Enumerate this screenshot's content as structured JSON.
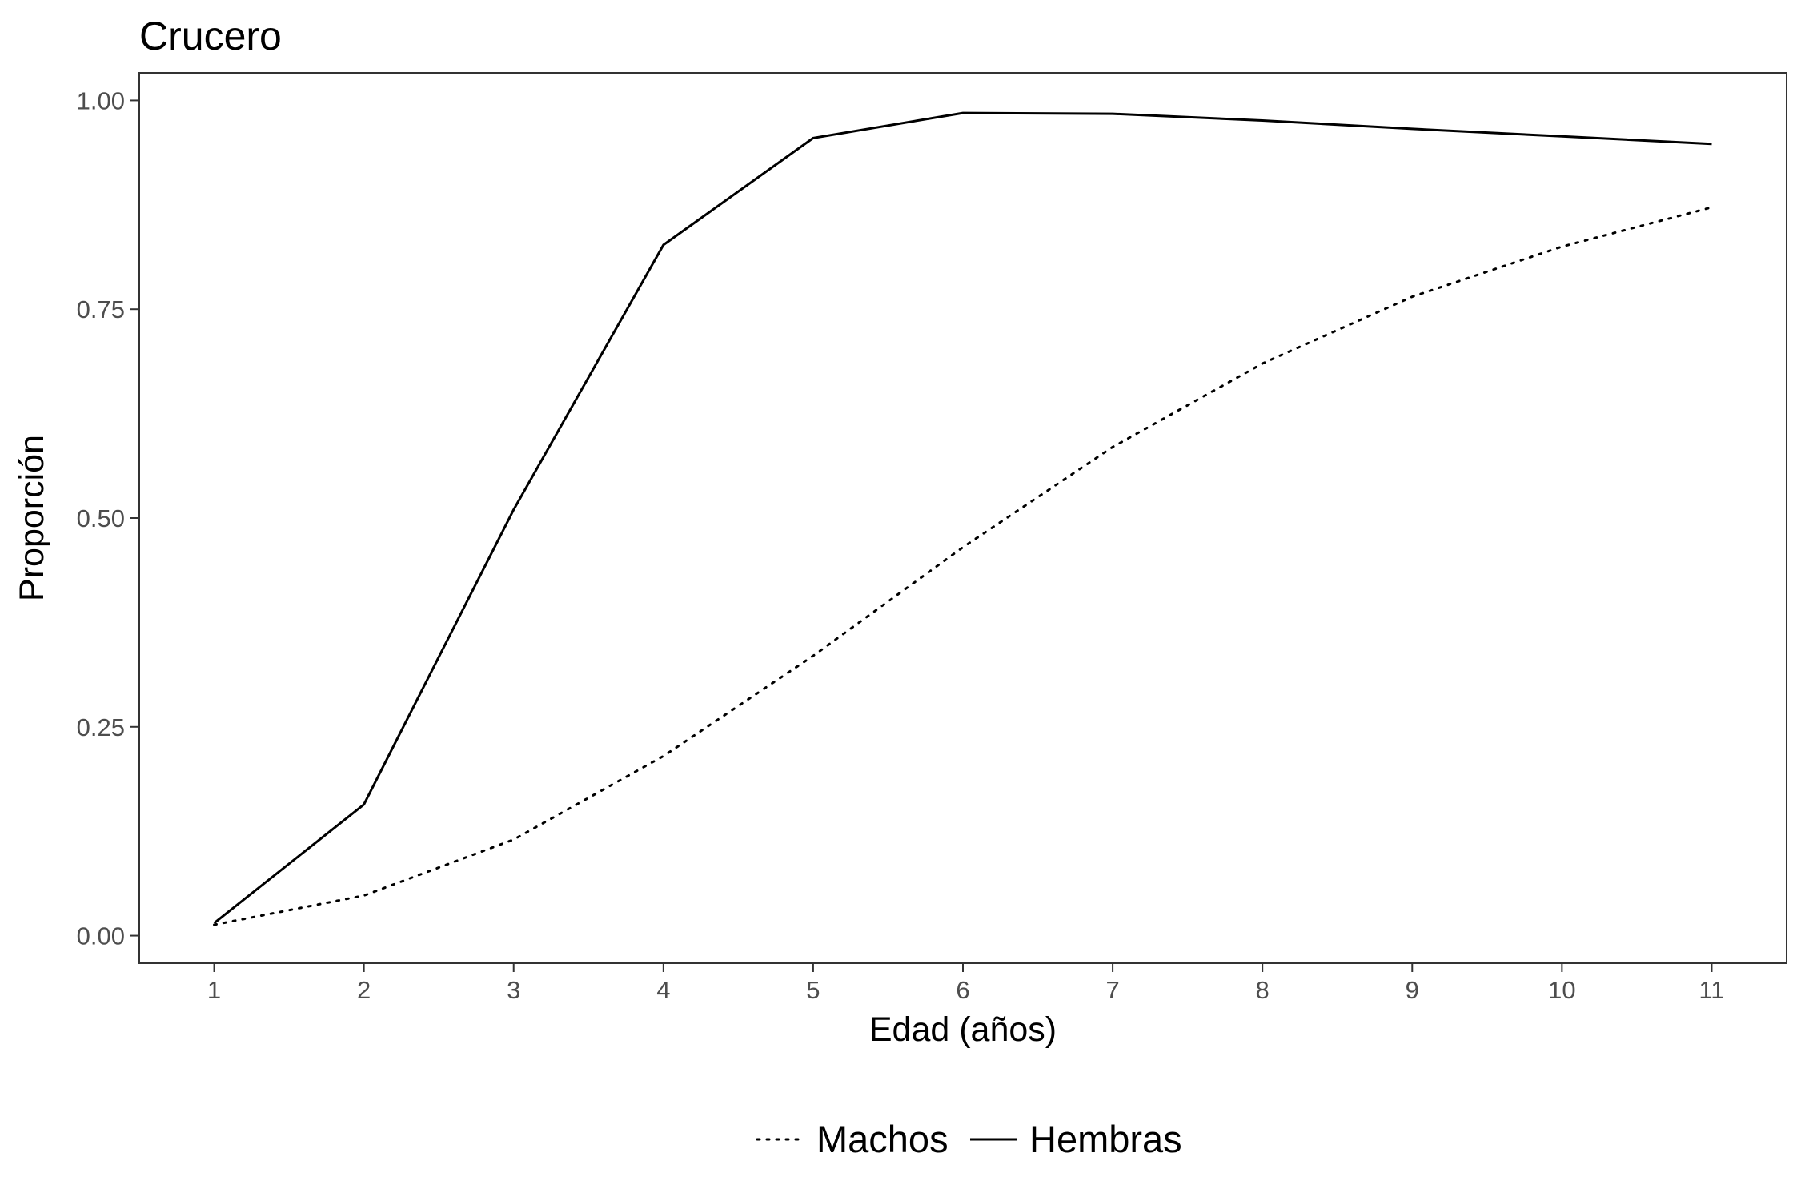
{
  "chart_data": {
    "type": "line",
    "title": "Crucero",
    "xlabel": "Edad (años)",
    "ylabel": "Proporción",
    "x": [
      1,
      2,
      3,
      4,
      5,
      6,
      7,
      8,
      9,
      10,
      11
    ],
    "xlim": [
      0.5,
      11.5
    ],
    "ylim": [
      -0.033,
      1.033
    ],
    "x_ticks": [
      "1",
      "2",
      "3",
      "4",
      "5",
      "6",
      "7",
      "8",
      "9",
      "10",
      "11"
    ],
    "y_ticks": [
      {
        "value": 0.0,
        "label": "0.00"
      },
      {
        "value": 0.25,
        "label": "0.25"
      },
      {
        "value": 0.5,
        "label": "0.50"
      },
      {
        "value": 0.75,
        "label": "0.75"
      },
      {
        "value": 1.0,
        "label": "1.00"
      }
    ],
    "grid": false,
    "legend_position": "bottom",
    "series": [
      {
        "name": "Machos",
        "line_style": "dotted",
        "color": "#000000",
        "values": [
          0.013,
          0.048,
          0.115,
          0.215,
          0.335,
          0.465,
          0.585,
          0.685,
          0.765,
          0.825,
          0.872
        ]
      },
      {
        "name": "Hembras",
        "line_style": "solid",
        "color": "#000000",
        "values": [
          0.015,
          0.157,
          0.51,
          0.827,
          0.955,
          0.985,
          0.984,
          0.976,
          0.966,
          0.957,
          0.948
        ]
      }
    ]
  }
}
